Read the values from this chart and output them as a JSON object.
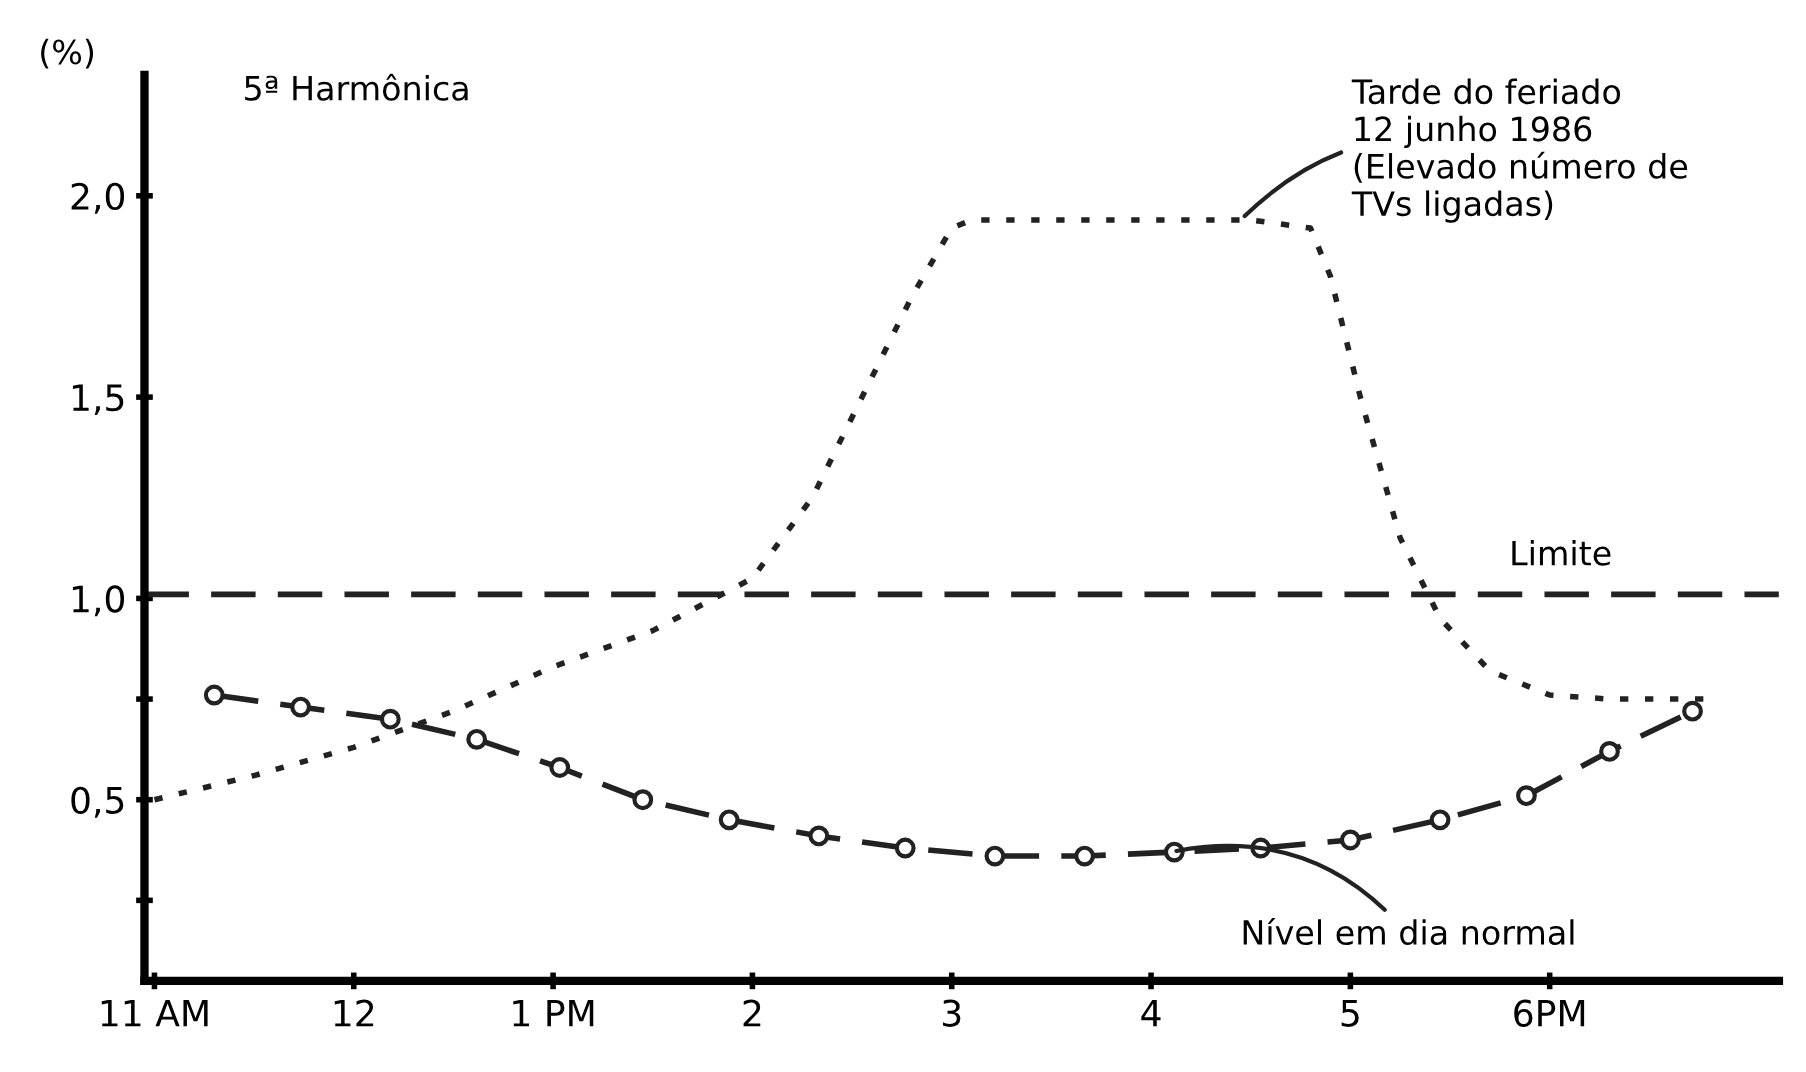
{
  "chart_data": {
    "type": "line",
    "title": "5ª Harmônica",
    "ylabel": "(%)",
    "xlim": [
      "1986-06-12T10:57",
      "1986-06-12T19:09"
    ],
    "ylim": [
      0.05,
      2.3
    ],
    "xticks": [
      {
        "value": "1986-06-12T11:00",
        "label": "11 AM"
      },
      {
        "value": "1986-06-12T12:00",
        "label": "12"
      },
      {
        "value": "1986-06-12T13:00",
        "label": "1 PM"
      },
      {
        "value": "1986-06-12T14:00",
        "label": "2"
      },
      {
        "value": "1986-06-12T15:00",
        "label": "3"
      },
      {
        "value": "1986-06-12T16:00",
        "label": "4"
      },
      {
        "value": "1986-06-12T17:00",
        "label": "5"
      },
      {
        "value": "1986-06-12T18:00",
        "label": "6PM"
      }
    ],
    "yticks": [
      {
        "value": 0.25,
        "label": null
      },
      {
        "value": 0.5,
        "label": "0,5"
      },
      {
        "value": 0.75,
        "label": null
      },
      {
        "value": 1.0,
        "label": "1,0"
      },
      {
        "value": 1.5,
        "label": "1,5"
      },
      {
        "value": 2.0,
        "label": "2,0"
      }
    ],
    "grid": false,
    "legend": false,
    "series": [
      {
        "color": "#222222",
        "line_style": "dashed",
        "marker": "circle",
        "x": [
          "1986-06-12T11:18",
          "1986-06-12T11:44",
          "1986-06-12T12:11",
          "1986-06-12T12:37",
          "1986-06-12T13:02",
          "1986-06-12T13:27",
          "1986-06-12T13:53",
          "1986-06-12T14:20",
          "1986-06-12T14:46",
          "1986-06-12T15:13",
          "1986-06-12T15:40",
          "1986-06-12T16:07",
          "1986-06-12T16:33",
          "1986-06-12T17:00",
          "1986-06-12T17:27",
          "1986-06-12T17:53",
          "1986-06-12T18:18",
          "1986-06-12T18:43"
        ],
        "values": [
          0.76,
          0.73,
          0.7,
          0.65,
          0.58,
          0.5,
          0.45,
          0.41,
          0.38,
          0.36,
          0.36,
          0.37,
          0.38,
          0.4,
          0.45,
          0.51,
          0.62,
          0.72
        ]
      },
      {
        "color": "#222222",
        "line_style": "dotted",
        "marker": "none",
        "x": [
          "1986-06-12T11:00",
          "1986-06-12T11:30",
          "1986-06-12T12:00",
          "1986-06-12T12:30",
          "1986-06-12T13:00",
          "1986-06-12T13:30",
          "1986-06-12T14:00",
          "1986-06-12T14:18",
          "1986-06-12T14:36",
          "1986-06-12T14:48",
          "1986-06-12T15:00",
          "1986-06-12T15:06",
          "1986-06-12T15:30",
          "1986-06-12T16:00",
          "1986-06-12T16:30",
          "1986-06-12T16:48",
          "1986-06-12T16:54",
          "1986-06-12T17:03",
          "1986-06-12T17:15",
          "1986-06-12T17:27",
          "1986-06-12T17:42",
          "1986-06-12T18:00",
          "1986-06-12T18:18",
          "1986-06-12T18:48"
        ],
        "values": [
          0.5,
          0.56,
          0.63,
          0.72,
          0.83,
          0.92,
          1.05,
          1.25,
          1.55,
          1.75,
          1.92,
          1.94,
          1.94,
          1.94,
          1.94,
          1.92,
          1.8,
          1.5,
          1.15,
          0.95,
          0.82,
          0.76,
          0.75,
          0.75
        ]
      }
    ],
    "ref_lines": [
      {
        "axis": "y",
        "value": 1.01,
        "label": "Limite",
        "line_style": "dashed",
        "color": "#222222"
      }
    ],
    "annotations": [
      {
        "text": "Tarde do feriado\n12 junho 1986\n(Elevado número de\nTVs ligadas)",
        "x": "1986-06-12T16:27",
        "y": 1.94
      },
      {
        "text": "Nível em dia normal",
        "x": "1986-06-12T16:06",
        "y": 0.37
      }
    ]
  }
}
